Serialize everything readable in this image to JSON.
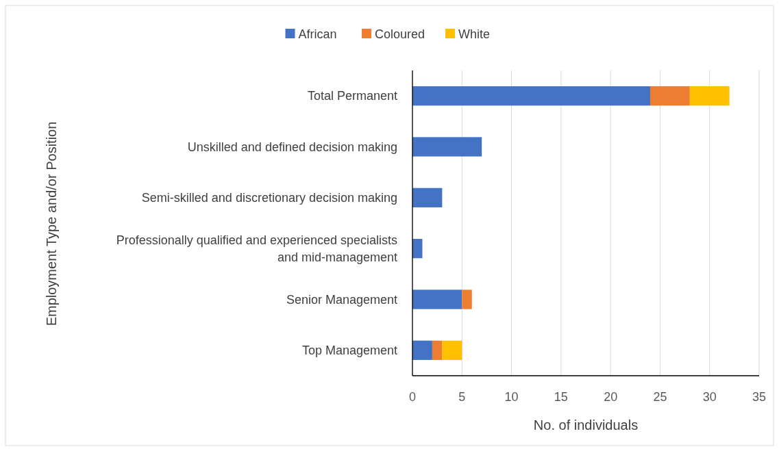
{
  "chart_data": {
    "type": "bar",
    "orientation": "horizontal",
    "stacked": true,
    "xlabel": "No. of individuals",
    "ylabel": "Employment Type and/or Position",
    "categories": [
      "Total Permanent",
      "Unskilled and defined decision making",
      "Semi-skilled and discretionary decision making",
      "Professionally qualified and experienced specialists and mid-management",
      "Senior Management",
      "Top Management"
    ],
    "series": [
      {
        "name": "African",
        "color": "#4472c4",
        "values": [
          24,
          7,
          3,
          1,
          5,
          2
        ]
      },
      {
        "name": "Coloured",
        "color": "#ed7d31",
        "values": [
          4,
          0,
          0,
          0,
          1,
          1
        ]
      },
      {
        "name": "White",
        "color": "#ffc000",
        "values": [
          4,
          0,
          0,
          0,
          0,
          2
        ]
      }
    ],
    "xlim": [
      0,
      35
    ],
    "xticks": [
      0,
      5,
      10,
      15,
      20,
      25,
      30,
      35
    ],
    "grid": "x",
    "legend": "top"
  }
}
